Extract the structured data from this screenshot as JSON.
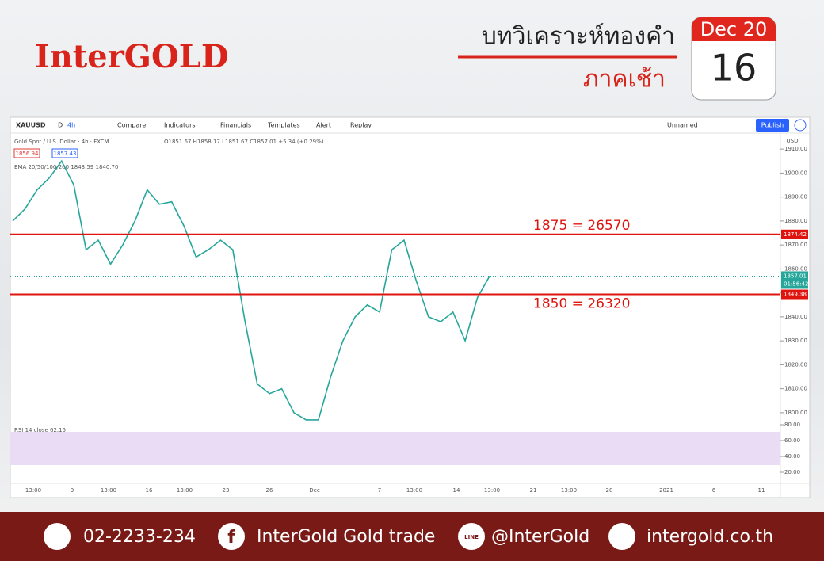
{
  "header": {
    "brand": "InterGOLD",
    "title": "บทวิเคราะห์ทองคำ",
    "subtitle": "ภาคเช้า",
    "calendar": {
      "top": "Dec 20",
      "day": "16"
    }
  },
  "toolbar": {
    "symbol": "XAUUSD",
    "interval_d": "D",
    "interval": "4h",
    "items": [
      "Compare",
      "Indicators",
      "Financials",
      "Templates",
      "Alert",
      "Replay"
    ],
    "layout": "Unnamed",
    "publish": "Publish"
  },
  "chart": {
    "legend": {
      "name": "Gold Spot / U.S. Dollar · 4h · FXCM",
      "ohlc": "O1851.67 H1858.17 L1851.67 C1857.01 +5.34 (+0.29%)",
      "bid": "1856.94",
      "ask": "1857.43",
      "ema": "EMA 20/50/100/200 1843.59 1840.70"
    },
    "currency": "USD",
    "ylim": [
      1796,
      1916
    ],
    "yticks": [
      {
        "value": 1800,
        "label": "1800.00"
      },
      {
        "value": 1810,
        "label": "1810.00"
      },
      {
        "value": 1820,
        "label": "1820.00"
      },
      {
        "value": 1830,
        "label": "1830.00"
      },
      {
        "value": 1840,
        "label": "1840.00"
      },
      {
        "value": 1850,
        "label": "1850.00"
      },
      {
        "value": 1860,
        "label": "1860.00"
      },
      {
        "value": 1870,
        "label": "1870.00"
      },
      {
        "value": 1880,
        "label": "1880.00"
      },
      {
        "value": 1890,
        "label": "1890.00"
      },
      {
        "value": 1900,
        "label": "1900.00"
      },
      {
        "value": 1910,
        "label": "1910.00"
      }
    ],
    "closes": [
      1880,
      1885,
      1893,
      1898,
      1905,
      1895,
      1868,
      1872,
      1862,
      1870,
      1880,
      1893,
      1887,
      1888,
      1878,
      1865,
      1868,
      1872,
      1868,
      1838,
      1812,
      1808,
      1810,
      1800,
      1797,
      1797,
      1815,
      1830,
      1840,
      1845,
      1842,
      1868,
      1872,
      1855,
      1840,
      1838,
      1842,
      1830,
      1848,
      1857.01
    ],
    "levels": [
      {
        "value": 1874.42,
        "label": "1874.42",
        "text": "1875 = 26570"
      },
      {
        "value": 1849.38,
        "label": "1849.38",
        "text": "1850 = 26320"
      }
    ],
    "last": {
      "value": 1857.01,
      "label": "1857.01",
      "countdown": "01:56:42"
    },
    "x_labels": [
      "13:00",
      "9",
      "13:00",
      "16",
      "13:00",
      "23",
      "26",
      "Dec",
      "7",
      "13:00",
      "14",
      "13:00",
      "21",
      "13:00",
      "28",
      "2021",
      "6",
      "11"
    ],
    "rsi": {
      "label": "RSI 14 close 62.15",
      "ylim": [
        11,
        81
      ],
      "yticks": [
        {
          "value": 20,
          "label": "20.00"
        },
        {
          "value": 40,
          "label": "40.00"
        },
        {
          "value": 60,
          "label": "60.00"
        },
        {
          "value": 80,
          "label": "80.00"
        }
      ]
    }
  },
  "footer": {
    "phone": "02-2233-234",
    "facebook": "InterGold Gold trade",
    "line_icon": "LINE",
    "line": "@InterGold",
    "website": "intergold.co.th"
  }
}
